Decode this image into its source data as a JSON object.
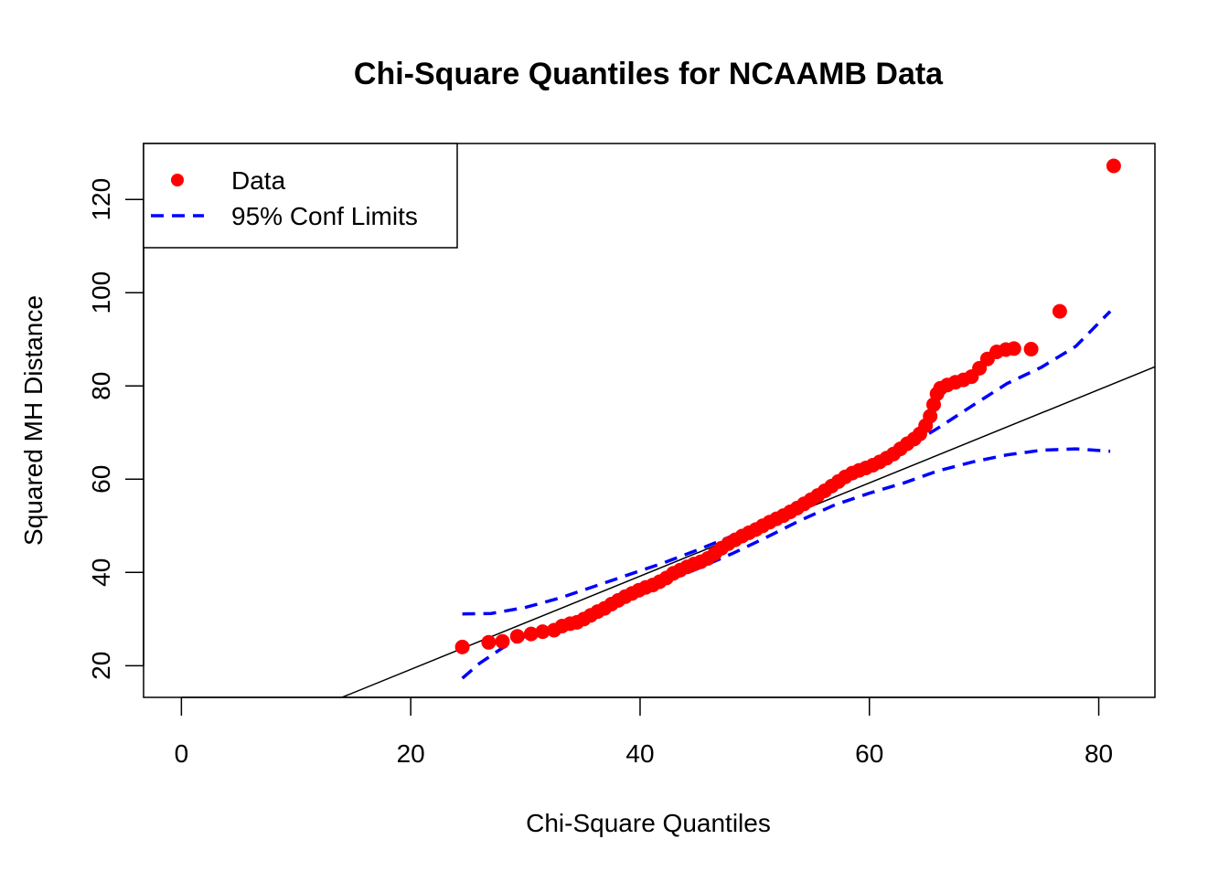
{
  "chart_data": {
    "type": "scatter",
    "title": "Chi-Square Quantiles for NCAAMB Data",
    "xlabel": "Chi-Square Quantiles",
    "ylabel": "Squared MH Distance",
    "xlim": [
      -3.3,
      84.9
    ],
    "ylim": [
      13.2,
      132.0
    ],
    "x_ticks": [
      0,
      20,
      40,
      60,
      80
    ],
    "y_ticks": [
      20,
      40,
      60,
      80,
      100,
      120
    ],
    "legend": {
      "position": "top-left",
      "entries": [
        {
          "label": "Data",
          "style": "point",
          "color": "#ff0000"
        },
        {
          "label": "95% Conf Limits",
          "style": "dashed-line",
          "color": "#0000ff"
        }
      ]
    },
    "reference_line": {
      "intercept": -0.8,
      "slope": 1.0,
      "color": "#000000"
    },
    "series": [
      {
        "name": "Data",
        "kind": "points",
        "color": "#ff0000",
        "points": [
          [
            24.5,
            24.0
          ],
          [
            26.8,
            25.0
          ],
          [
            28.0,
            25.2
          ],
          [
            29.3,
            26.3
          ],
          [
            30.5,
            26.8
          ],
          [
            31.5,
            27.3
          ],
          [
            32.5,
            27.6
          ],
          [
            33.2,
            28.5
          ],
          [
            33.9,
            29.0
          ],
          [
            34.5,
            29.3
          ],
          [
            35.1,
            30.0
          ],
          [
            35.7,
            30.8
          ],
          [
            36.3,
            31.6
          ],
          [
            36.9,
            32.3
          ],
          [
            37.5,
            33.2
          ],
          [
            38.1,
            34.0
          ],
          [
            38.7,
            34.8
          ],
          [
            39.3,
            35.5
          ],
          [
            39.9,
            36.2
          ],
          [
            40.5,
            36.8
          ],
          [
            41.1,
            37.3
          ],
          [
            41.7,
            38.0
          ],
          [
            42.3,
            38.8
          ],
          [
            42.9,
            39.8
          ],
          [
            43.5,
            40.5
          ],
          [
            44.1,
            41.2
          ],
          [
            44.7,
            41.8
          ],
          [
            45.3,
            42.3
          ],
          [
            45.9,
            43.0
          ],
          [
            46.5,
            44.0
          ],
          [
            47.1,
            45.2
          ],
          [
            47.7,
            46.2
          ],
          [
            48.3,
            47.0
          ],
          [
            48.9,
            47.8
          ],
          [
            49.5,
            48.5
          ],
          [
            50.1,
            49.2
          ],
          [
            50.7,
            50.0
          ],
          [
            51.3,
            50.8
          ],
          [
            51.9,
            51.5
          ],
          [
            52.5,
            52.2
          ],
          [
            53.1,
            53.0
          ],
          [
            53.7,
            53.8
          ],
          [
            54.3,
            54.7
          ],
          [
            54.9,
            55.6
          ],
          [
            55.5,
            56.5
          ],
          [
            56.1,
            57.5
          ],
          [
            56.7,
            58.5
          ],
          [
            57.3,
            59.5
          ],
          [
            57.9,
            60.5
          ],
          [
            58.5,
            61.3
          ],
          [
            59.1,
            61.9
          ],
          [
            59.7,
            62.4
          ],
          [
            60.3,
            63.0
          ],
          [
            60.9,
            63.7
          ],
          [
            61.5,
            64.5
          ],
          [
            62.1,
            65.4
          ],
          [
            62.7,
            66.5
          ],
          [
            63.3,
            67.6
          ],
          [
            63.9,
            68.6
          ],
          [
            64.4,
            69.7
          ],
          [
            64.9,
            71.5
          ],
          [
            65.3,
            73.5
          ],
          [
            65.6,
            76.0
          ],
          [
            65.9,
            78.3
          ],
          [
            66.2,
            79.5
          ],
          [
            66.8,
            80.2
          ],
          [
            67.5,
            80.8
          ],
          [
            68.2,
            81.3
          ],
          [
            68.9,
            82.0
          ],
          [
            69.6,
            83.8
          ],
          [
            70.3,
            85.8
          ],
          [
            71.1,
            87.3
          ],
          [
            71.9,
            87.8
          ],
          [
            72.6,
            88.0
          ],
          [
            74.1,
            87.9
          ],
          [
            76.6,
            96.0
          ],
          [
            81.3,
            127.2
          ]
        ]
      },
      {
        "name": "95% Conf Limits",
        "kind": "upper-dashed-line",
        "color": "#0000ff",
        "points": [
          [
            24.5,
            31.1
          ],
          [
            27.0,
            31.2
          ],
          [
            30.0,
            32.5
          ],
          [
            33.0,
            34.5
          ],
          [
            36.0,
            37.0
          ],
          [
            39.0,
            39.5
          ],
          [
            42.0,
            42.0
          ],
          [
            45.0,
            44.8
          ],
          [
            48.0,
            47.8
          ],
          [
            51.0,
            51.0
          ],
          [
            54.0,
            54.5
          ],
          [
            57.0,
            58.3
          ],
          [
            60.0,
            62.3
          ],
          [
            63.0,
            66.5
          ],
          [
            66.0,
            71.0
          ],
          [
            69.0,
            75.8
          ],
          [
            72.0,
            80.5
          ],
          [
            75.0,
            84.0
          ],
          [
            78.0,
            88.5
          ],
          [
            81.0,
            96.0
          ]
        ]
      },
      {
        "name": "95% Conf Limits",
        "kind": "lower-dashed-line",
        "color": "#0000ff",
        "points": [
          [
            24.5,
            17.3
          ],
          [
            26.0,
            20.5
          ],
          [
            28.0,
            23.8
          ],
          [
            30.0,
            26.3
          ],
          [
            33.0,
            28.8
          ],
          [
            36.0,
            31.8
          ],
          [
            39.0,
            34.8
          ],
          [
            42.0,
            37.8
          ],
          [
            45.0,
            40.8
          ],
          [
            48.0,
            44.0
          ],
          [
            51.0,
            47.5
          ],
          [
            54.0,
            51.2
          ],
          [
            57.0,
            54.5
          ],
          [
            60.0,
            57.0
          ],
          [
            63.0,
            59.2
          ],
          [
            66.0,
            61.8
          ],
          [
            69.0,
            63.7
          ],
          [
            72.0,
            65.2
          ],
          [
            75.0,
            66.2
          ],
          [
            78.0,
            66.5
          ],
          [
            81.0,
            66.0
          ]
        ]
      }
    ]
  }
}
